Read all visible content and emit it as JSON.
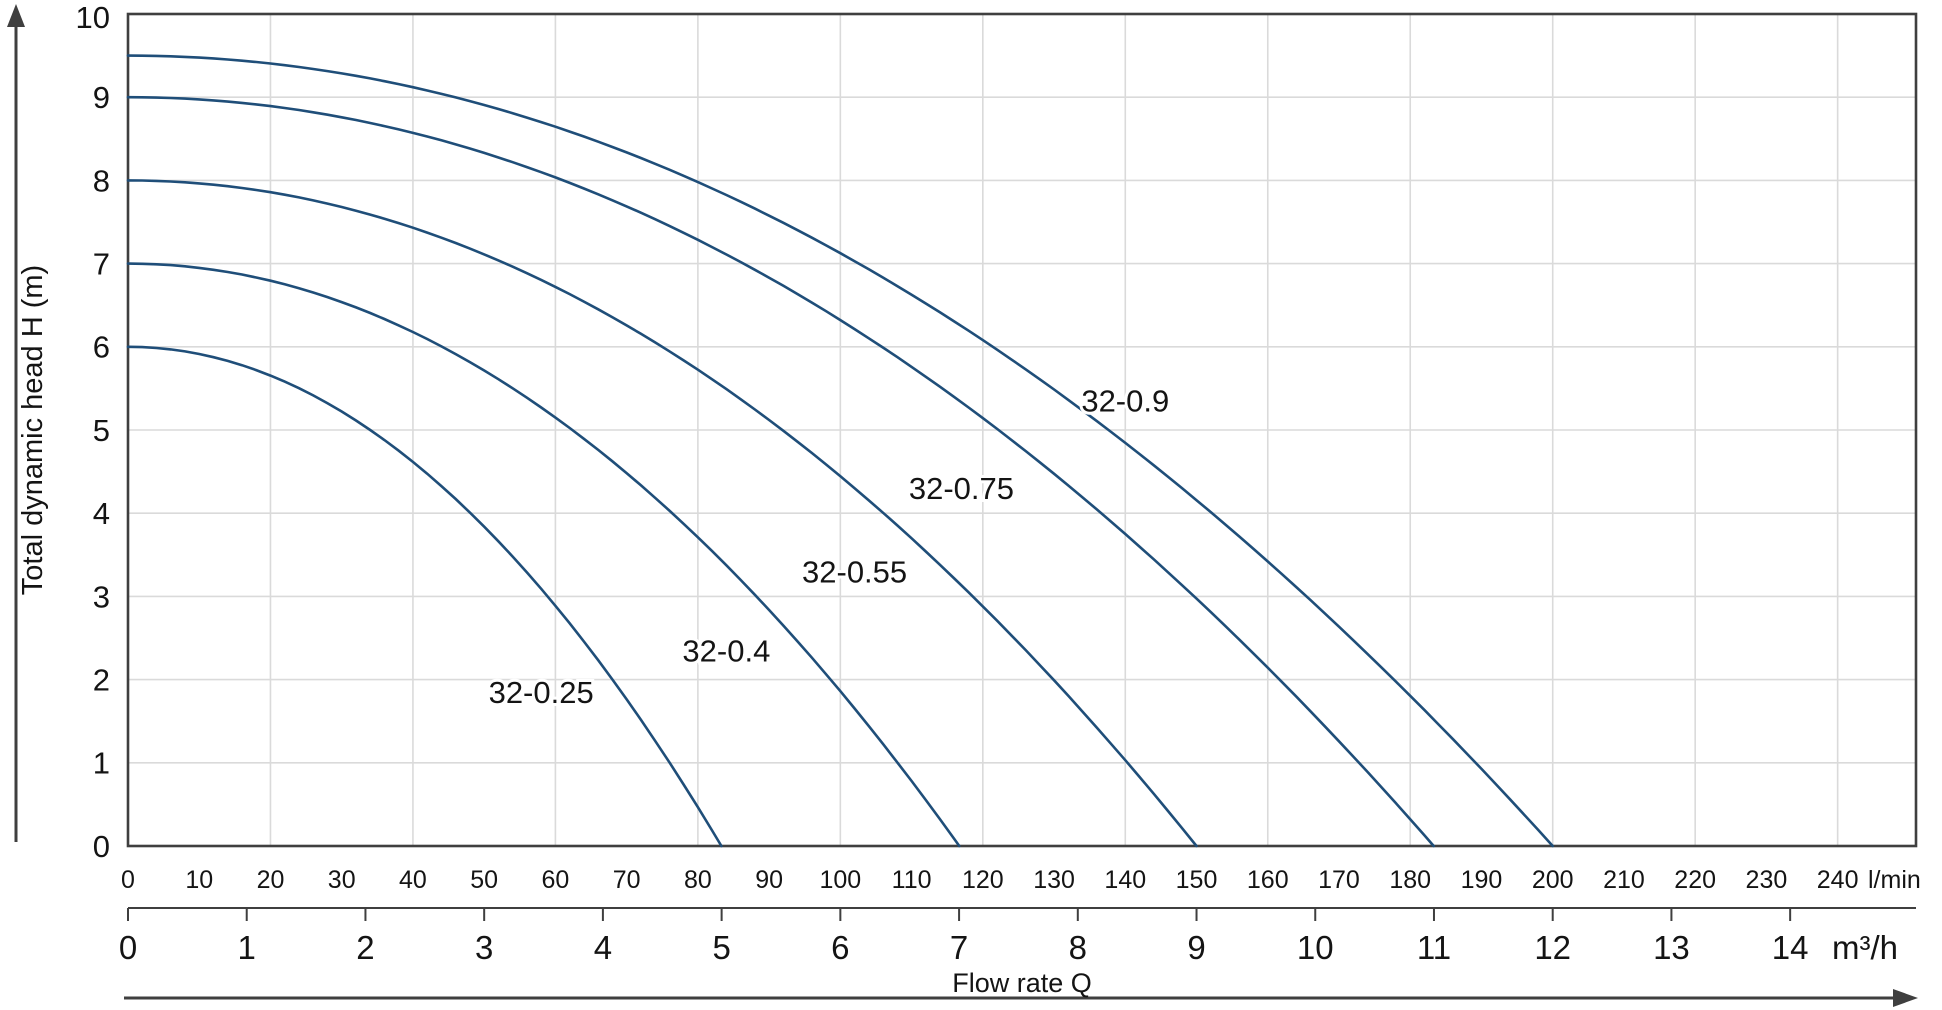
{
  "chart_data": {
    "type": "line",
    "xlabel": "Flow rate Q",
    "ylabel": "Total dynamic head H (m)",
    "x_unit_primary": "l/min",
    "x_unit_secondary": "m³/h",
    "ylim": [
      0,
      10
    ],
    "xlim_lmin": [
      0,
      251
    ],
    "y_ticks": [
      0,
      1,
      2,
      3,
      4,
      5,
      6,
      7,
      8,
      9,
      10
    ],
    "x_ticks_lmin": [
      0,
      10,
      20,
      30,
      40,
      50,
      60,
      70,
      80,
      90,
      100,
      110,
      120,
      130,
      140,
      150,
      160,
      170,
      180,
      190,
      200,
      210,
      220,
      230,
      240
    ],
    "x_ticks_m3h": [
      0,
      1,
      2,
      3,
      4,
      5,
      6,
      7,
      8,
      9,
      10,
      11,
      12,
      13,
      14
    ],
    "grid": {
      "on": true,
      "x_step_lmin": 20,
      "y_step_m": 1
    },
    "curve_exponent": 2,
    "legend_position": "inline-labels-on-curves",
    "series": [
      {
        "name": "32-0.25",
        "h_at_zero_flow_m": 6.0,
        "q_at_zero_head_lmin": 83.3,
        "q_at_zero_head_m3h": 5,
        "label_q_lmin": 58,
        "label_h_m": 1.85,
        "points_lmin_h": [
          [
            0,
            6.0
          ],
          [
            10,
            5.9
          ],
          [
            20,
            5.7
          ],
          [
            30,
            5.2
          ],
          [
            40,
            4.6
          ],
          [
            50,
            3.8
          ],
          [
            60,
            2.9
          ],
          [
            70,
            1.7
          ],
          [
            80,
            0.4
          ],
          [
            83.3,
            0
          ]
        ]
      },
      {
        "name": "32-0.4",
        "h_at_zero_flow_m": 7.0,
        "q_at_zero_head_lmin": 116.7,
        "q_at_zero_head_m3h": 7,
        "label_q_lmin": 84,
        "label_h_m": 2.35,
        "points_lmin_h": [
          [
            0,
            7.0
          ],
          [
            20,
            6.8
          ],
          [
            40,
            6.2
          ],
          [
            60,
            5.2
          ],
          [
            80,
            3.7
          ],
          [
            100,
            1.9
          ],
          [
            110,
            0.8
          ],
          [
            116.7,
            0
          ]
        ]
      },
      {
        "name": "32-0.55",
        "h_at_zero_flow_m": 8.0,
        "q_at_zero_head_lmin": 150,
        "q_at_zero_head_m3h": 9,
        "label_q_lmin": 102,
        "label_h_m": 3.3,
        "points_lmin_h": [
          [
            0,
            8.0
          ],
          [
            25,
            7.8
          ],
          [
            50,
            7.1
          ],
          [
            75,
            6.0
          ],
          [
            100,
            4.4
          ],
          [
            125,
            2.4
          ],
          [
            140,
            1.0
          ],
          [
            150,
            0
          ]
        ]
      },
      {
        "name": "32-0.75",
        "h_at_zero_flow_m": 9.0,
        "q_at_zero_head_lmin": 183.3,
        "q_at_zero_head_m3h": 11,
        "label_q_lmin": 117,
        "label_h_m": 4.3,
        "points_lmin_h": [
          [
            0,
            9.0
          ],
          [
            30,
            8.8
          ],
          [
            60,
            8.0
          ],
          [
            90,
            6.8
          ],
          [
            120,
            5.1
          ],
          [
            150,
            3.0
          ],
          [
            170,
            1.2
          ],
          [
            183.3,
            0
          ]
        ]
      },
      {
        "name": "32-0.9",
        "h_at_zero_flow_m": 9.5,
        "q_at_zero_head_lmin": 200,
        "q_at_zero_head_m3h": 12,
        "label_q_lmin": 140,
        "label_h_m": 5.35,
        "points_lmin_h": [
          [
            0,
            9.5
          ],
          [
            40,
            9.1
          ],
          [
            80,
            8.0
          ],
          [
            120,
            6.1
          ],
          [
            160,
            3.4
          ],
          [
            180,
            1.8
          ],
          [
            200,
            0
          ]
        ]
      }
    ],
    "colors": {
      "curve": "#1f4e79",
      "grid": "#dadada",
      "axis": "#3f3f3f",
      "text": "#141414",
      "background": "#ffffff"
    }
  }
}
